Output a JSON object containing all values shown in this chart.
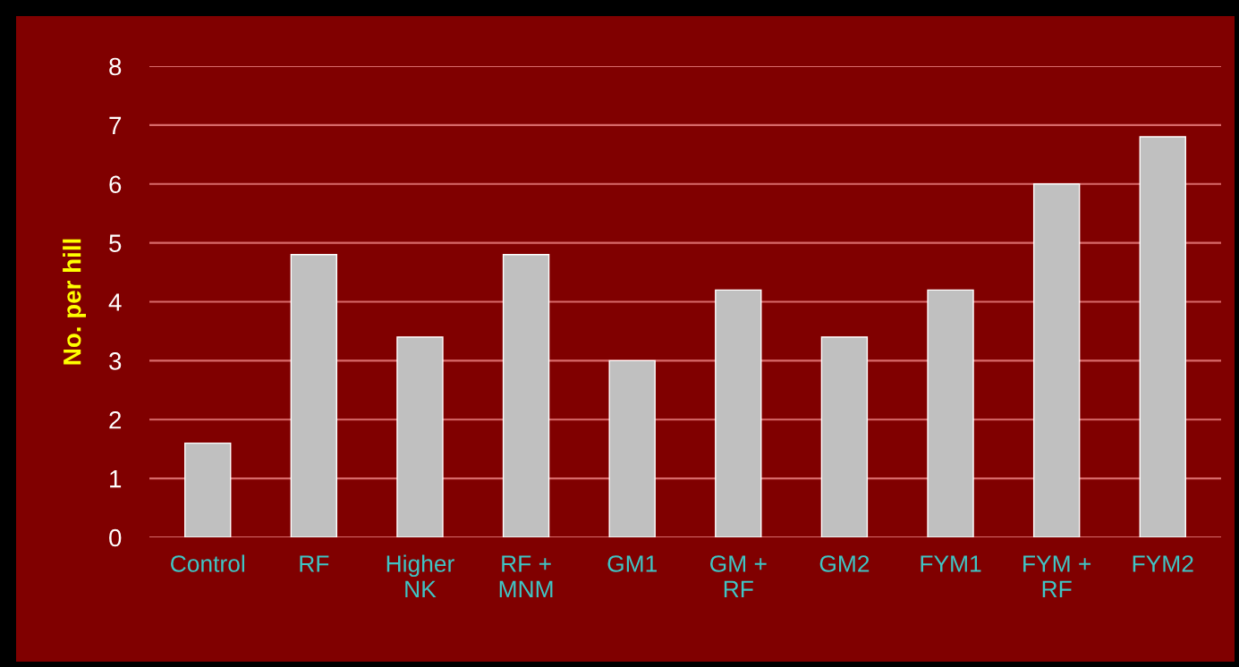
{
  "chart_data": {
    "type": "bar",
    "ylabel": "No. per hill",
    "categories": [
      "Control",
      "RF",
      "Higher\nNK",
      "RF +\nMNM",
      "GM1",
      "GM +\nRF",
      "GM2",
      "FYM1",
      "FYM +\nRF",
      "FYM2"
    ],
    "values": [
      1.6,
      4.8,
      3.4,
      4.8,
      3.0,
      4.2,
      3.4,
      4.2,
      6.0,
      6.8
    ],
    "color": "#c0c0c0",
    "ylim": [
      0,
      8
    ],
    "yticks": [
      0,
      1,
      2,
      3,
      4,
      5,
      6,
      7,
      8
    ],
    "grid": "y"
  }
}
